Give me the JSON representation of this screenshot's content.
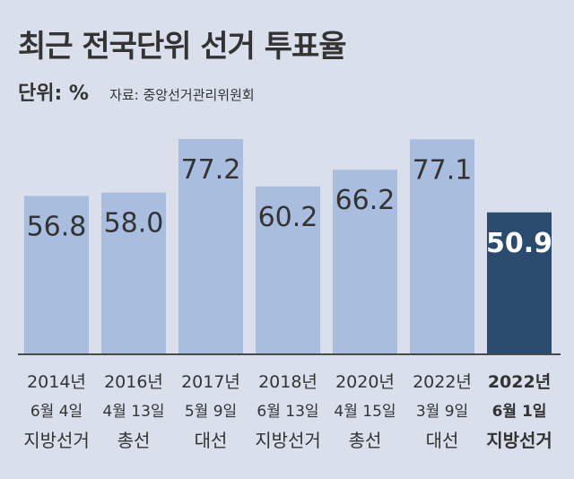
{
  "title": "최근 전국단위 선거 투표율",
  "unit_label": "단위: %",
  "source": "자료: 중앙선거관리위원회",
  "colors": {
    "panel": "#d9e0ec",
    "bar": "#a9bedf",
    "highlight": "#2a4a6e",
    "text": "#333333",
    "baseline": "#4a4a4a"
  },
  "chart_data": {
    "type": "bar",
    "categories": [
      {
        "year": "2014년",
        "date": "6월 4일",
        "kind": "지방선거"
      },
      {
        "year": "2016년",
        "date": "4월 13일",
        "kind": "총선"
      },
      {
        "year": "2017년",
        "date": "5월 9일",
        "kind": "대선"
      },
      {
        "year": "2018년",
        "date": "6월 13일",
        "kind": "지방선거"
      },
      {
        "year": "2020년",
        "date": "4월 15일",
        "kind": "총선"
      },
      {
        "year": "2022년",
        "date": "3월 9일",
        "kind": "대선"
      },
      {
        "year": "2022년",
        "date": "6월 1일",
        "kind": "지방선거"
      }
    ],
    "values": [
      56.8,
      58.0,
      77.2,
      60.2,
      66.2,
      77.1,
      50.9
    ],
    "value_labels": [
      "56.8",
      "58.0",
      "77.2",
      "60.2",
      "66.2",
      "77.1",
      "50.9"
    ],
    "highlight_index": 6,
    "ylim": [
      0,
      77.2
    ]
  }
}
